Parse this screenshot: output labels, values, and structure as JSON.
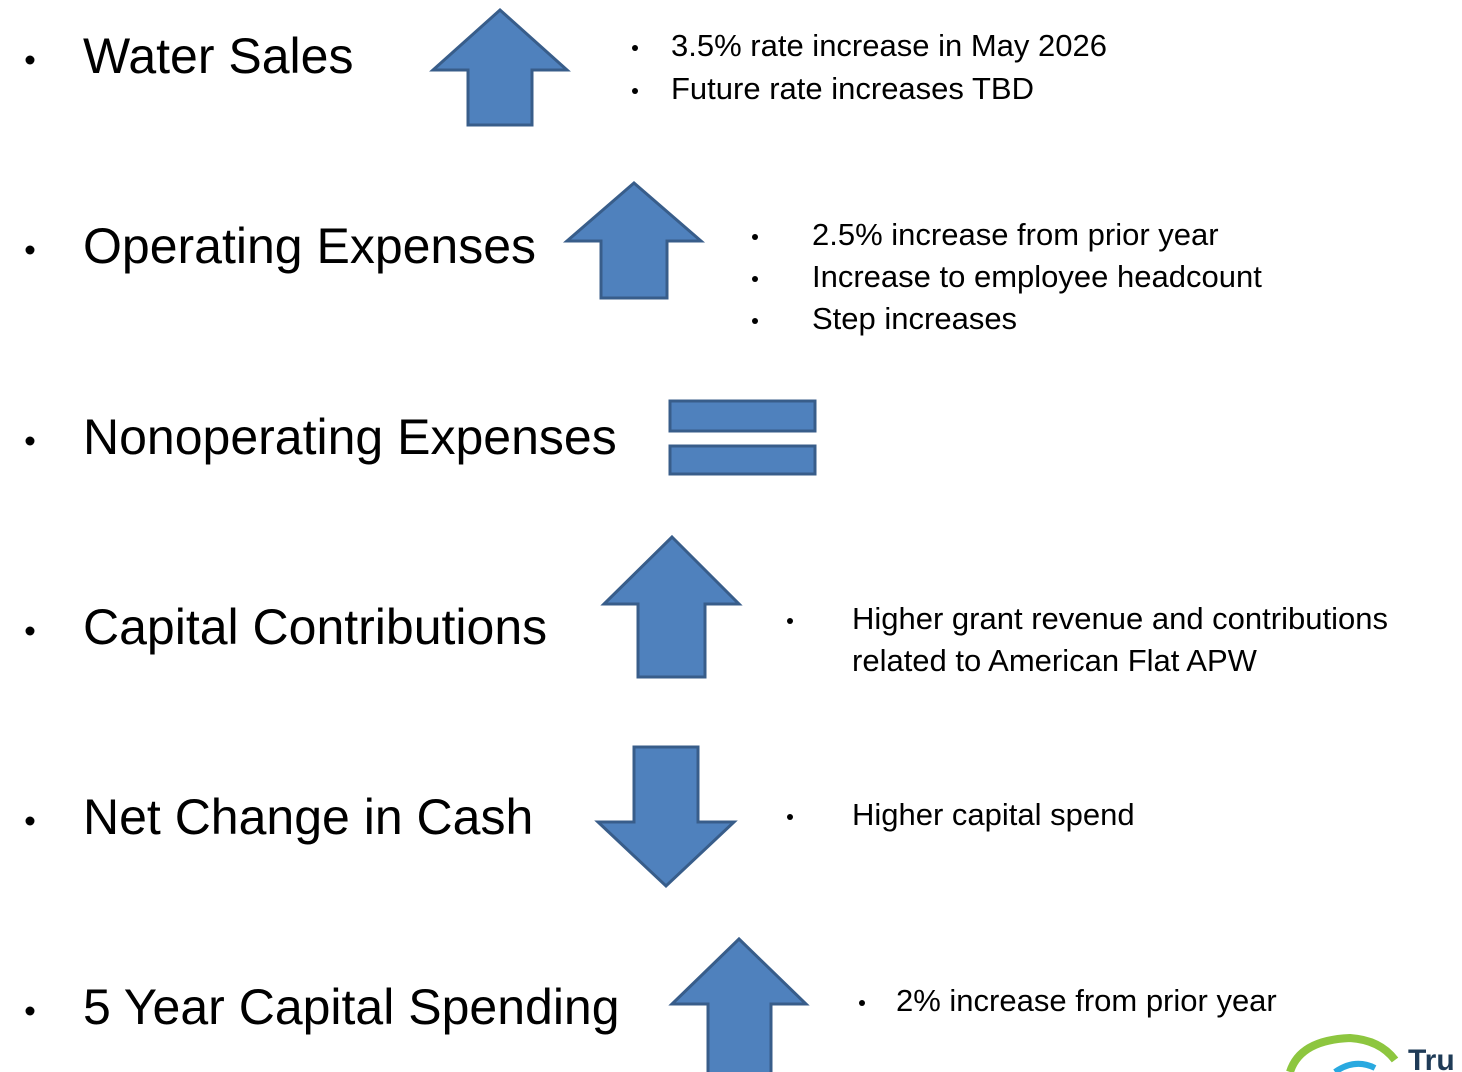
{
  "items": [
    {
      "label": "Water Sales",
      "notes": [
        [
          "3.5% rate increase in May 2026"
        ],
        [
          "Future rate increases TBD"
        ]
      ]
    },
    {
      "label": "Operating Expenses",
      "notes": [
        [
          "2.5% increase from prior year"
        ],
        [
          "Increase to employee headcount"
        ],
        [
          "Step increases"
        ]
      ]
    },
    {
      "label": "Nonoperating Expenses",
      "notes": []
    },
    {
      "label": "Capital Contributions",
      "notes": [
        [
          "Higher grant revenue and contributions",
          "related to American Flat APW"
        ]
      ]
    },
    {
      "label": "Net Change in Cash",
      "notes": [
        [
          "Higher capital spend"
        ]
      ]
    },
    {
      "label": "5 Year Capital Spending",
      "notes": [
        [
          "2% increase from prior year"
        ]
      ]
    }
  ],
  "logo": {
    "text": "Tru"
  }
}
